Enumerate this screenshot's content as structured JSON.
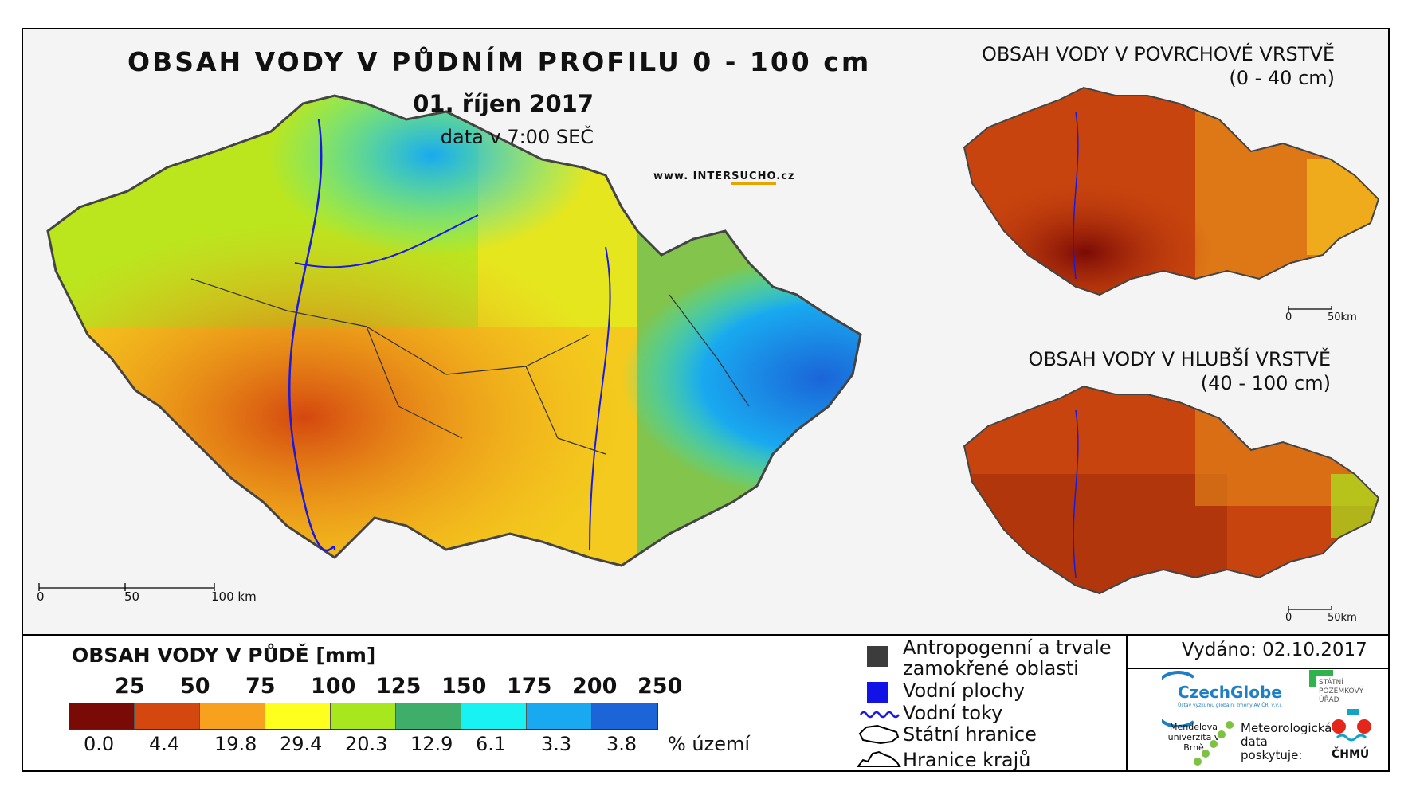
{
  "title": "OBSAH VODY V PŮDNÍM PROFILU 0 - 100 cm",
  "date": "01. říjen 2017",
  "time": "data v 7:00 SEČ",
  "web": {
    "prefix": "www. INTER",
    "highlight": "SUCHO",
    "suffix": ".cz"
  },
  "main_scale": {
    "t0": "0",
    "t1": "50",
    "t2": "100 km"
  },
  "surface_map": {
    "title_line1": "OBSAH VODY V POVRCHOVÉ VRSTVĚ",
    "title_line2": "(0 - 40 cm)",
    "scale0": "0",
    "scale1": "50km"
  },
  "deep_map": {
    "title_line1": "OBSAH VODY V HLUBŠÍ VRSTVĚ",
    "title_line2": "(40 - 100 cm)",
    "scale0": "0",
    "scale1": "50km"
  },
  "legend": {
    "title": "OBSAH VODY V PŮDĚ [mm]",
    "thresholds": [
      "25",
      "50",
      "75",
      "100",
      "125",
      "150",
      "175",
      "200",
      "250"
    ],
    "colors": [
      "#7a0a06",
      "#d4470f",
      "#f7a11e",
      "#ffff1e",
      "#a8e61e",
      "#3fae6a",
      "#18f2f2",
      "#19a9f0",
      "#1b65d8"
    ],
    "percentages": [
      "0.0",
      "4.4",
      "19.8",
      "29.4",
      "20.3",
      "12.9",
      "6.1",
      "3.3",
      "3.8"
    ],
    "unit": "% území"
  },
  "symbols": {
    "anthro_line1": "Antropogenní a trvale",
    "anthro_line2": "zamokřené oblasti",
    "water": "Vodní plochy",
    "rivers": "Vodní toky",
    "border": "Státní hranice",
    "regions": "Hranice krajů"
  },
  "issued": "Vydáno: 02.10.2017",
  "logos": {
    "czechglobe": "CzechGlobe",
    "czechglobe_sub": "Ústav výzkumu globální změny AV ČR, v.v.i.",
    "spu": "STÁTNÍ POZEMKOVÝ ÚŘAD",
    "mendel": "Mendelova univerzita v Brně",
    "meteo": "Meteorologická data poskytuje:",
    "chmu": "ČHMÚ"
  }
}
